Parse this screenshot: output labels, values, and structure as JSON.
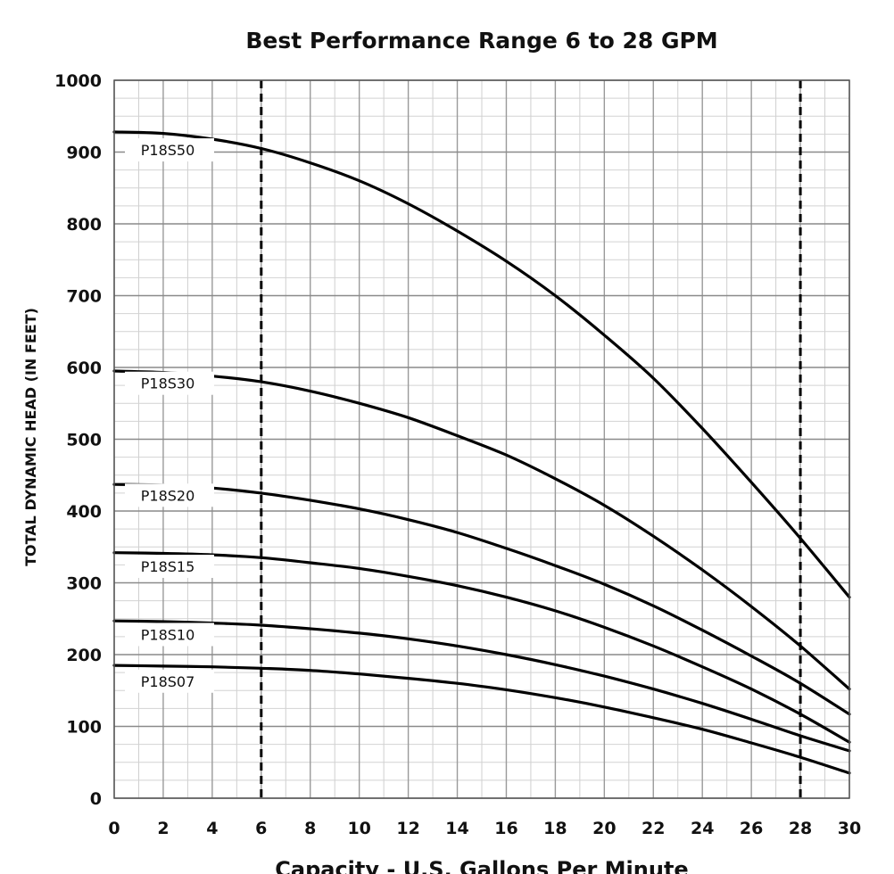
{
  "chart_data": {
    "type": "line",
    "title": "Best Performance Range 6 to 28 GPM",
    "xlabel": "Capacity - U.S. Gallons Per Minute",
    "ylabel": "TOTAL DYNAMIC HEAD (IN FEET)",
    "xlim": [
      0,
      30
    ],
    "ylim": [
      0,
      1000
    ],
    "xticks": [
      0,
      2,
      4,
      6,
      8,
      10,
      12,
      14,
      16,
      18,
      20,
      22,
      24,
      26,
      28,
      30
    ],
    "yticks": [
      0,
      100,
      200,
      300,
      400,
      500,
      600,
      700,
      800,
      900,
      1000
    ],
    "grid": true,
    "reference_lines_x": [
      6,
      28
    ],
    "series": [
      {
        "name": "P18S50",
        "x": [
          0,
          2,
          4,
          6,
          8,
          10,
          12,
          14,
          16,
          18,
          20,
          22,
          24,
          26,
          28,
          30
        ],
        "values": [
          928,
          926,
          918,
          905,
          885,
          860,
          828,
          790,
          748,
          700,
          645,
          585,
          515,
          440,
          362,
          280
        ]
      },
      {
        "name": "P18S30",
        "x": [
          0,
          2,
          4,
          6,
          8,
          10,
          12,
          14,
          16,
          18,
          20,
          22,
          24,
          26,
          28,
          30
        ],
        "values": [
          595,
          593,
          588,
          580,
          567,
          550,
          530,
          505,
          478,
          445,
          408,
          365,
          318,
          267,
          212,
          152
        ]
      },
      {
        "name": "P18S20",
        "x": [
          0,
          2,
          4,
          6,
          8,
          10,
          12,
          14,
          16,
          18,
          20,
          22,
          24,
          26,
          28,
          30
        ],
        "values": [
          437,
          436,
          432,
          425,
          415,
          403,
          388,
          370,
          348,
          324,
          298,
          268,
          234,
          198,
          160,
          117
        ]
      },
      {
        "name": "P18S15",
        "x": [
          0,
          2,
          4,
          6,
          8,
          10,
          12,
          14,
          16,
          18,
          20,
          22,
          24,
          26,
          28,
          30
        ],
        "values": [
          342,
          341,
          339,
          335,
          328,
          320,
          309,
          296,
          280,
          261,
          238,
          212,
          183,
          152,
          117,
          78
        ]
      },
      {
        "name": "P18S10",
        "x": [
          0,
          2,
          4,
          6,
          8,
          10,
          12,
          14,
          16,
          18,
          20,
          22,
          24,
          26,
          28,
          30
        ],
        "values": [
          247,
          246,
          244,
          241,
          236,
          230,
          222,
          212,
          200,
          186,
          170,
          152,
          132,
          110,
          87,
          66
        ]
      },
      {
        "name": "P18S07",
        "x": [
          0,
          2,
          4,
          6,
          8,
          10,
          12,
          14,
          16,
          18,
          20,
          22,
          24,
          26,
          28,
          30
        ],
        "values": [
          185,
          184,
          183,
          181,
          178,
          173,
          167,
          160,
          151,
          140,
          127,
          112,
          96,
          77,
          57,
          35
        ]
      }
    ],
    "series_label_values": [
      {
        "name": "P18S50",
        "y": 903
      },
      {
        "name": "P18S30",
        "y": 578
      },
      {
        "name": "P18S20",
        "y": 422
      },
      {
        "name": "P18S15",
        "y": 323
      },
      {
        "name": "P18S10",
        "y": 228
      },
      {
        "name": "P18S07",
        "y": 163
      }
    ]
  }
}
